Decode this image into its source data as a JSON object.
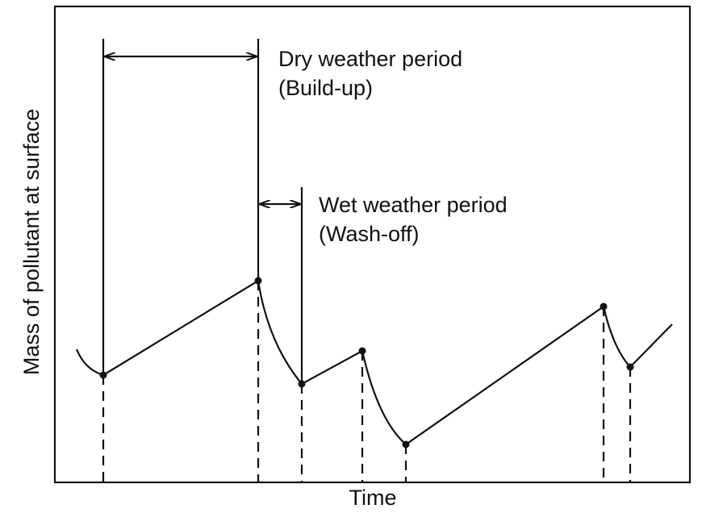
{
  "annotations": [
    {
      "title": "Dry weather period",
      "subtitle": "(Build-up)"
    },
    {
      "title": "Wet weather period",
      "subtitle": "(Wash-off)"
    }
  ],
  "axes": {
    "x_label": "Time",
    "y_label": "Mass of pollutant at surface"
  }
}
